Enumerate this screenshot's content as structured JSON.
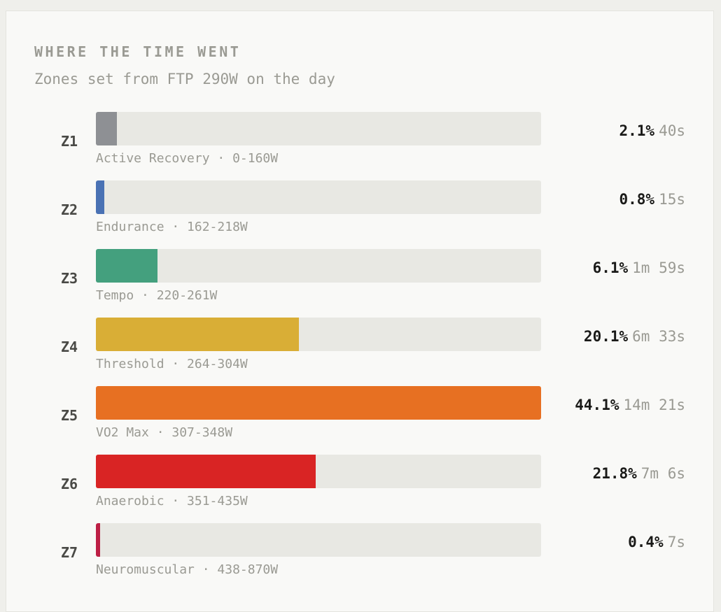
{
  "header": {
    "eyebrow": "WHERE THE TIME WENT",
    "subtitle": "Zones set from FTP 290W on the day"
  },
  "chart_data": {
    "type": "bar",
    "orientation": "horizontal",
    "title": "WHERE THE TIME WENT",
    "subtitle": "Zones set from FTP 290W on the day",
    "scale_max_percent": 44.1,
    "zones": [
      {
        "id": "Z1",
        "name": "Active Recovery",
        "range": "0-160W",
        "desc": "Active Recovery · 0-160W",
        "percent": 2.1,
        "percent_label": "2.1%",
        "duration": "40s",
        "color": "#8e9094"
      },
      {
        "id": "Z2",
        "name": "Endurance",
        "range": "162-218W",
        "desc": "Endurance · 162-218W",
        "percent": 0.8,
        "percent_label": "0.8%",
        "duration": "15s",
        "color": "#4a72b4"
      },
      {
        "id": "Z3",
        "name": "Tempo",
        "range": "220-261W",
        "desc": "Tempo · 220-261W",
        "percent": 6.1,
        "percent_label": "6.1%",
        "duration": "1m 59s",
        "color": "#44a07e"
      },
      {
        "id": "Z4",
        "name": "Threshold",
        "range": "264-304W",
        "desc": "Threshold · 264-304W",
        "percent": 20.1,
        "percent_label": "20.1%",
        "duration": "6m 33s",
        "color": "#d9ae36"
      },
      {
        "id": "Z5",
        "name": "VO2 Max",
        "range": "307-348W",
        "desc": "VO2 Max · 307-348W",
        "percent": 44.1,
        "percent_label": "44.1%",
        "duration": "14m 21s",
        "color": "#e77022"
      },
      {
        "id": "Z6",
        "name": "Anaerobic",
        "range": "351-435W",
        "desc": "Anaerobic · 351-435W",
        "percent": 21.8,
        "percent_label": "21.8%",
        "duration": "7m 6s",
        "color": "#d92424"
      },
      {
        "id": "Z7",
        "name": "Neuromuscular",
        "range": "438-870W",
        "desc": "Neuromuscular · 438-870W",
        "percent": 0.4,
        "percent_label": "0.4%",
        "duration": "7s",
        "color": "#bd1f45"
      }
    ]
  }
}
